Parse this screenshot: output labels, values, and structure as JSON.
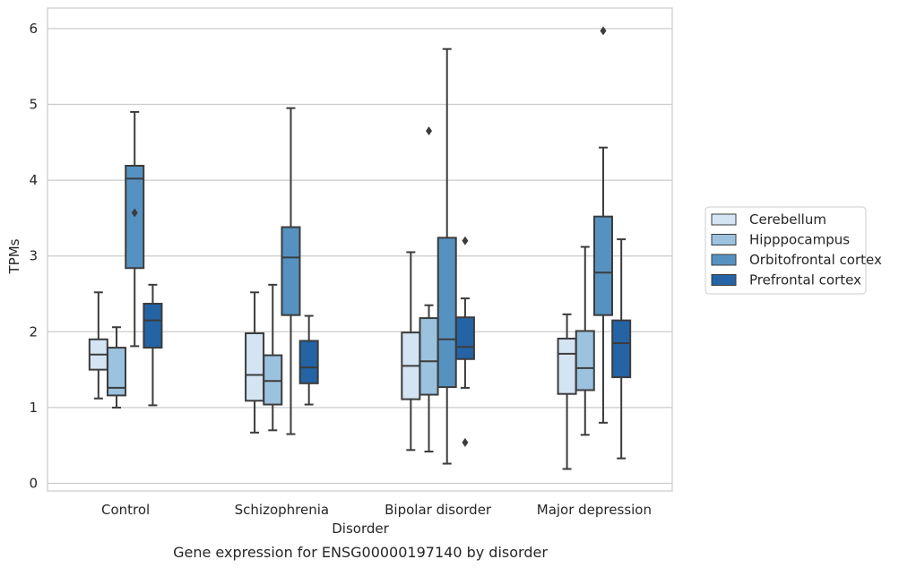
{
  "chart_data": {
    "type": "box",
    "xlabel": "Disorder",
    "ylabel": "TPMs",
    "caption": "Gene expression for ENSG00000197140 by disorder",
    "categories": [
      "Control",
      "Schizophrenia",
      "Bipolar disorder",
      "Major depression"
    ],
    "ylim": [
      -0.1,
      6.27
    ],
    "yticks": [
      "0",
      "1",
      "2",
      "3",
      "4",
      "5",
      "6"
    ],
    "grid": "horizontal",
    "legend_position": "right",
    "series": [
      {
        "name": "Cerebellum",
        "color": "#d5e4f3",
        "boxes": [
          {
            "whislo": 1.12,
            "q1": 1.5,
            "med": 1.7,
            "q3": 1.9,
            "whishi": 2.52,
            "fliers": []
          },
          {
            "whislo": 0.67,
            "q1": 1.09,
            "med": 1.43,
            "q3": 1.98,
            "whishi": 2.52,
            "fliers": []
          },
          {
            "whislo": 0.44,
            "q1": 1.11,
            "med": 1.55,
            "q3": 1.99,
            "whishi": 3.05,
            "fliers": []
          },
          {
            "whislo": 0.19,
            "q1": 1.18,
            "med": 1.71,
            "q3": 1.91,
            "whishi": 2.23,
            "fliers": []
          }
        ]
      },
      {
        "name": "Hipppocampus",
        "color": "#9bc2de",
        "boxes": [
          {
            "whislo": 1.0,
            "q1": 1.16,
            "med": 1.26,
            "q3": 1.79,
            "whishi": 2.06,
            "fliers": []
          },
          {
            "whislo": 0.7,
            "q1": 1.04,
            "med": 1.35,
            "q3": 1.69,
            "whishi": 2.62,
            "fliers": []
          },
          {
            "whislo": 0.42,
            "q1": 1.17,
            "med": 1.61,
            "q3": 2.18,
            "whishi": 2.35,
            "fliers": [
              4.65
            ]
          },
          {
            "whislo": 0.64,
            "q1": 1.23,
            "med": 1.52,
            "q3": 2.01,
            "whishi": 3.12,
            "fliers": []
          }
        ]
      },
      {
        "name": "Orbitofrontal cortex",
        "color": "#5592c2",
        "boxes": [
          {
            "whislo": 1.81,
            "q1": 2.84,
            "med": 4.02,
            "q3": 4.19,
            "whishi": 4.9,
            "fliers": [
              3.57
            ]
          },
          {
            "whislo": 0.65,
            "q1": 2.22,
            "med": 2.98,
            "q3": 3.38,
            "whishi": 4.95,
            "fliers": []
          },
          {
            "whislo": 0.26,
            "q1": 1.27,
            "med": 1.9,
            "q3": 3.24,
            "whishi": 5.73,
            "fliers": []
          },
          {
            "whislo": 0.8,
            "q1": 2.22,
            "med": 2.78,
            "q3": 3.52,
            "whishi": 4.43,
            "fliers": [
              5.97
            ]
          }
        ]
      },
      {
        "name": "Prefrontal cortex",
        "color": "#2463a4",
        "boxes": [
          {
            "whislo": 1.03,
            "q1": 1.79,
            "med": 2.15,
            "q3": 2.37,
            "whishi": 2.62,
            "fliers": []
          },
          {
            "whislo": 1.04,
            "q1": 1.32,
            "med": 1.53,
            "q3": 1.88,
            "whishi": 2.21,
            "fliers": []
          },
          {
            "whislo": 1.26,
            "q1": 1.64,
            "med": 1.8,
            "q3": 2.19,
            "whishi": 2.44,
            "fliers": [
              3.2,
              0.54
            ]
          },
          {
            "whislo": 0.33,
            "q1": 1.4,
            "med": 1.85,
            "q3": 2.15,
            "whishi": 3.22,
            "fliers": []
          }
        ]
      }
    ]
  }
}
